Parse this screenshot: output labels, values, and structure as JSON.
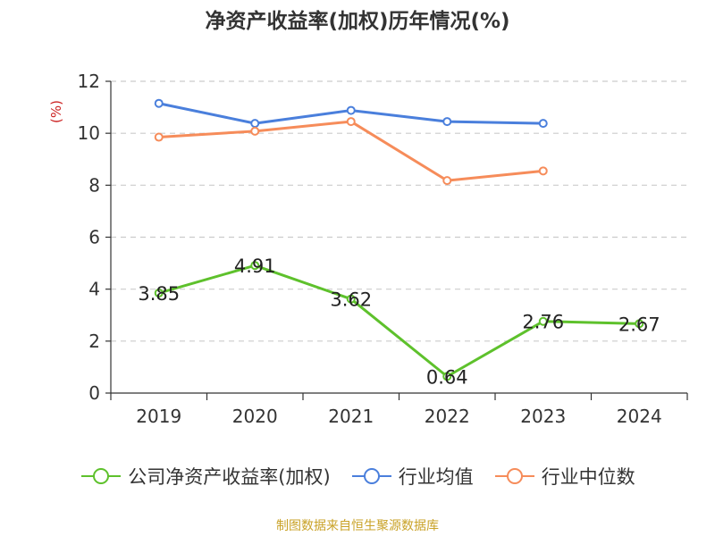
{
  "chart_data": {
    "type": "line",
    "title": "净资产收益率(加权)历年情况(%)",
    "ylabel": "(%)",
    "xlabel": "",
    "categories": [
      "2019",
      "2020",
      "2021",
      "2022",
      "2023",
      "2024"
    ],
    "ylim": [
      0,
      12
    ],
    "yticks": [
      0,
      2,
      4,
      6,
      8,
      10,
      12
    ],
    "grid": true,
    "legend_position": "bottom",
    "series": [
      {
        "name": "公司净资产收益率(加权)",
        "color": "#5ec12c",
        "values": [
          3.85,
          4.91,
          3.62,
          0.64,
          2.76,
          2.67
        ],
        "labels": [
          "3.85",
          "4.91",
          "3.62",
          "0.64",
          "2.76",
          "2.67"
        ]
      },
      {
        "name": "行业均值",
        "color": "#4a7fdc",
        "values": [
          11.15,
          10.38,
          10.88,
          10.45,
          10.38,
          null
        ]
      },
      {
        "name": "行业中位数",
        "color": "#f68c5a",
        "values": [
          9.85,
          10.08,
          10.45,
          8.18,
          8.55,
          null
        ]
      }
    ],
    "source_note": "制图数据来自恒生聚源数据库"
  },
  "colors": {
    "axis": "#333333",
    "grid": "#cccccc",
    "ylabel": "#cc2222",
    "source": "#c9a227"
  }
}
